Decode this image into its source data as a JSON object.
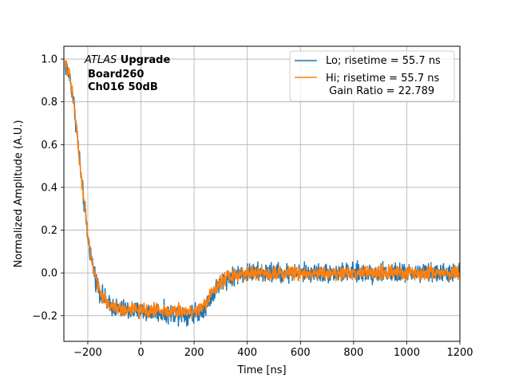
{
  "chart_data": {
    "type": "line",
    "title": "",
    "xlabel": "Time [ns]",
    "ylabel": "Normalized Amplitude (A.U.)",
    "xlim": [
      -290,
      1200
    ],
    "ylim": [
      -0.32,
      1.06
    ],
    "xticks": [
      -200,
      0,
      200,
      400,
      600,
      800,
      1000,
      1200
    ],
    "yticks": [
      -0.2,
      0.0,
      0.2,
      0.4,
      0.6,
      0.8,
      1.0
    ],
    "xtick_labels": [
      "−200",
      "0",
      "200",
      "400",
      "600",
      "800",
      "1000",
      "1200"
    ],
    "ytick_labels": [
      "−0.2",
      "0.0",
      "0.2",
      "0.4",
      "0.6",
      "0.8",
      "1.0"
    ],
    "grid": true,
    "legend_position": "top-right",
    "annotation": {
      "line1_italic": "ATLAS",
      "line1_bold": " Upgrade",
      "line2": "Board260",
      "line3": "Ch016 50dB"
    },
    "series": [
      {
        "name": "Lo; risetime = 55.7 ns",
        "color": "#1f77b4",
        "noise": 0.022,
        "x": [
          -285,
          -270,
          -255,
          -240,
          -225,
          -210,
          -200,
          -190,
          -170,
          -150,
          -120,
          -100,
          -80,
          -60,
          -40,
          -20,
          0,
          50,
          100,
          150,
          200,
          230,
          250,
          270,
          290,
          310,
          330,
          360,
          400,
          450,
          500,
          600,
          700,
          800,
          900,
          1000,
          1100,
          1200
        ],
        "y": [
          0.97,
          0.93,
          0.82,
          0.65,
          0.45,
          0.28,
          0.17,
          0.09,
          -0.03,
          -0.1,
          -0.15,
          -0.16,
          -0.17,
          -0.17,
          -0.18,
          -0.18,
          -0.18,
          -0.18,
          -0.19,
          -0.19,
          -0.19,
          -0.17,
          -0.14,
          -0.1,
          -0.06,
          -0.03,
          -0.02,
          -0.01,
          0.0,
          0.0,
          0.0,
          0.0,
          0.0,
          0.0,
          0.0,
          0.0,
          0.0,
          0.0
        ]
      },
      {
        "name": "Hi; risetime = 55.7 ns\n Gain Ratio = 22.789",
        "color": "#ff7f0e",
        "noise": 0.016,
        "x": [
          -285,
          -270,
          -255,
          -240,
          -225,
          -210,
          -200,
          -190,
          -170,
          -150,
          -120,
          -100,
          -80,
          -60,
          -40,
          -20,
          0,
          50,
          100,
          150,
          200,
          230,
          250,
          270,
          290,
          310,
          330,
          360,
          400,
          450,
          500,
          600,
          700,
          800,
          900,
          1000,
          1100,
          1200
        ],
        "y": [
          0.97,
          0.93,
          0.82,
          0.65,
          0.45,
          0.28,
          0.17,
          0.09,
          -0.03,
          -0.1,
          -0.15,
          -0.16,
          -0.17,
          -0.17,
          -0.17,
          -0.17,
          -0.18,
          -0.17,
          -0.18,
          -0.18,
          -0.18,
          -0.16,
          -0.13,
          -0.09,
          -0.05,
          -0.03,
          -0.02,
          -0.01,
          0.0,
          0.0,
          0.0,
          0.0,
          0.0,
          0.0,
          0.0,
          0.0,
          0.0,
          0.0
        ]
      }
    ]
  }
}
